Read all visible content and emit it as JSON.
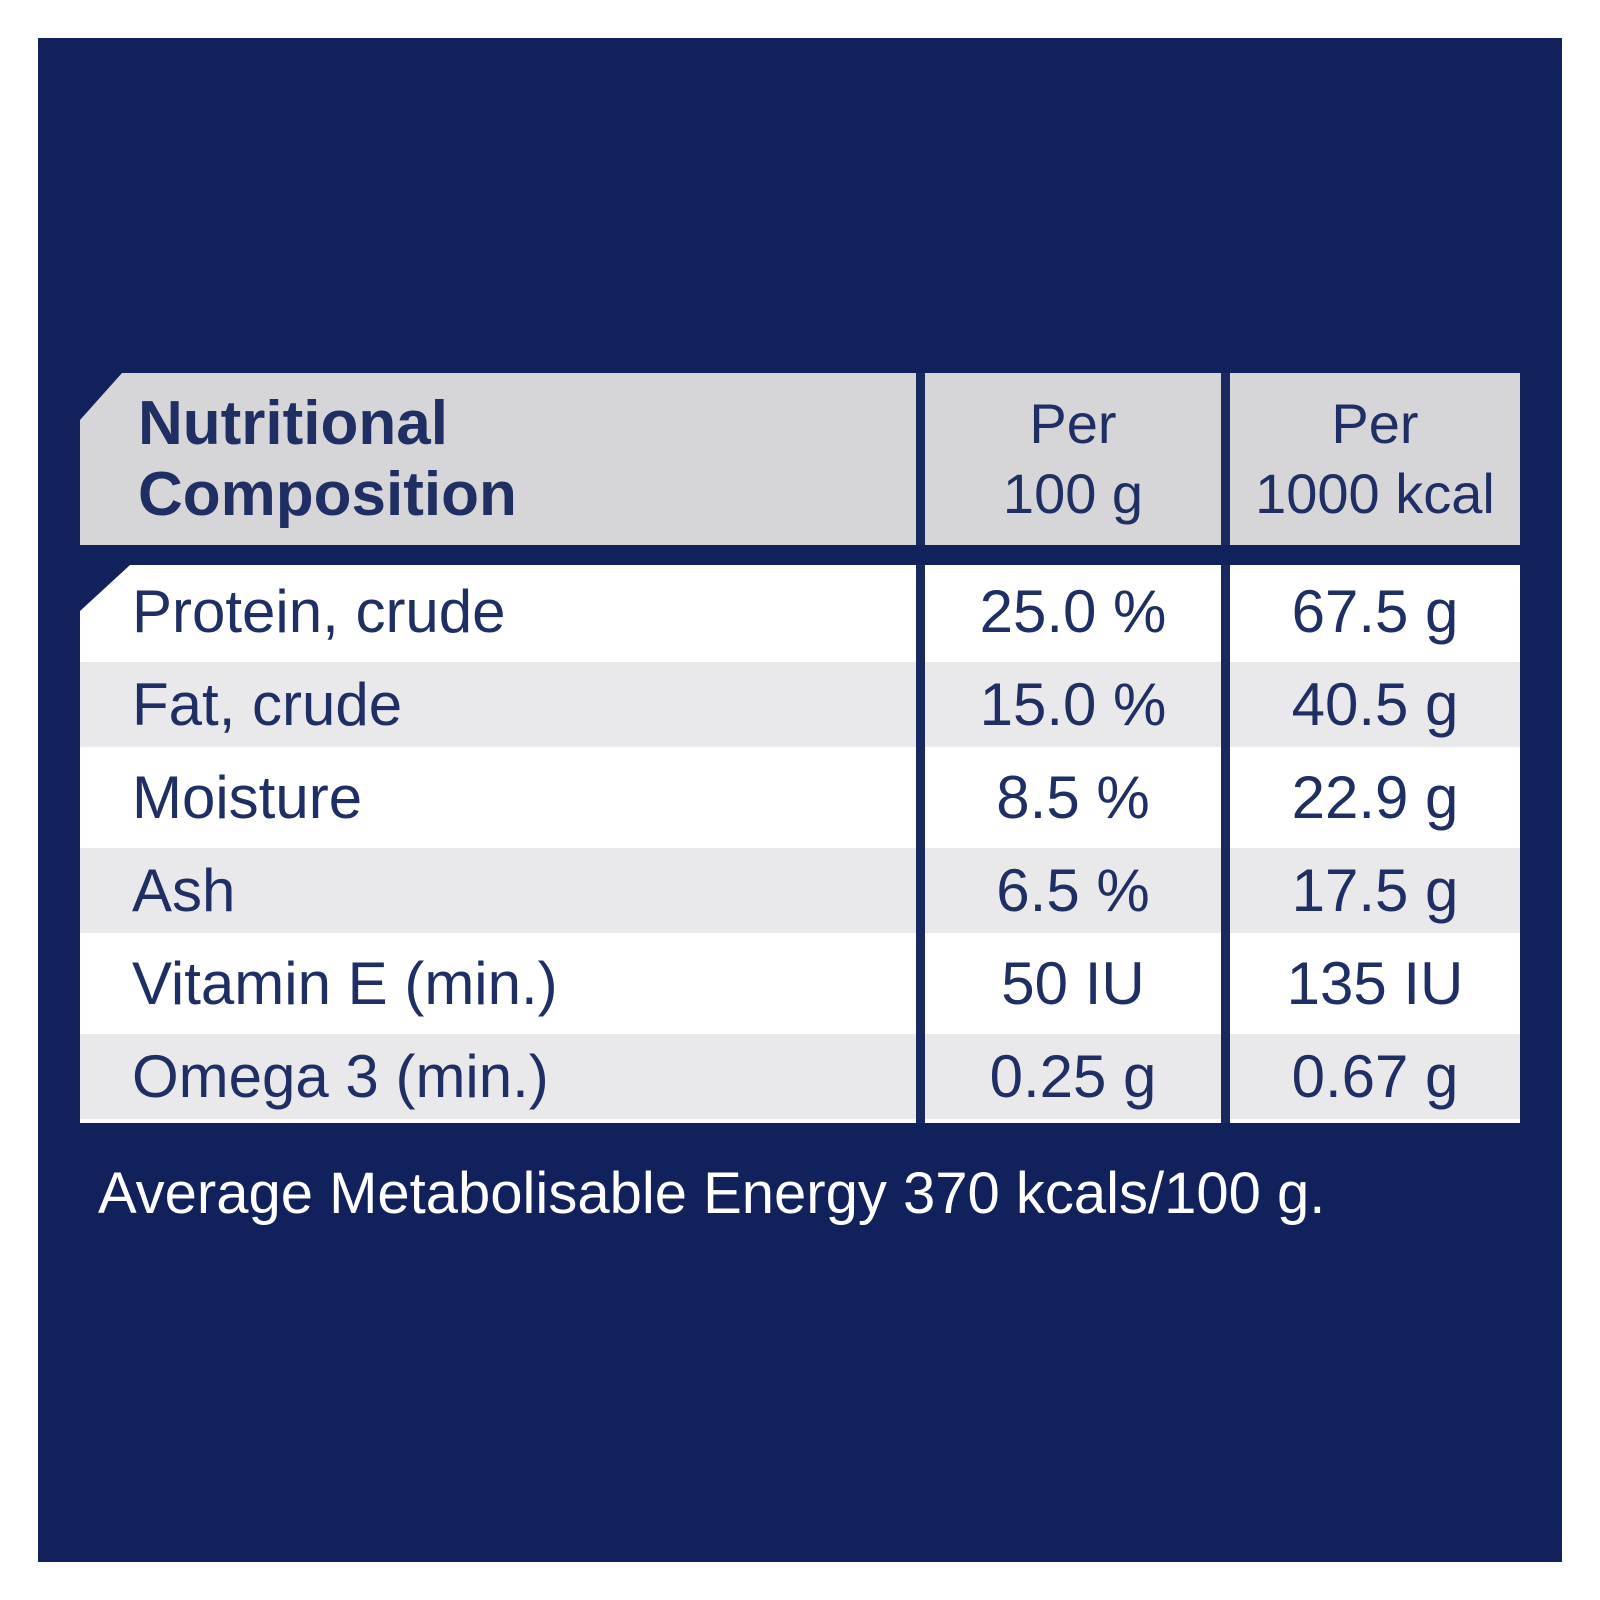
{
  "table": {
    "header": {
      "title": "Nutritional\nComposition",
      "per_100g": "Per\n100 g",
      "per_1000kcal": "Per\n1000 kcal"
    },
    "rows": [
      {
        "label": "Protein, crude",
        "per100g": "25.0 %",
        "per1000kcal": "67.5 g"
      },
      {
        "label": "Fat, crude",
        "per100g": "15.0 %",
        "per1000kcal": "40.5 g"
      },
      {
        "label": "Moisture",
        "per100g": "8.5 %",
        "per1000kcal": "22.9 g"
      },
      {
        "label": "Ash",
        "per100g": "6.5 %",
        "per1000kcal": "17.5 g"
      },
      {
        "label": "Vitamin E (min.)",
        "per100g": "50 IU",
        "per1000kcal": "135 IU"
      },
      {
        "label": "Omega 3 (min.)",
        "per100g": "0.25 g",
        "per1000kcal": "0.67 g"
      }
    ]
  },
  "footer": {
    "text": "Average Metabolisable Energy 370 kcals/100 g."
  },
  "colors": {
    "background_navy": "#10215b",
    "divider_navy": "#18295f",
    "text_navy": "#1f2f63",
    "header_gray": "#d6d6d8",
    "alt_row_gray": "#e9e9eb",
    "row_white": "#ffffff",
    "footer_white": "#ffffff"
  }
}
